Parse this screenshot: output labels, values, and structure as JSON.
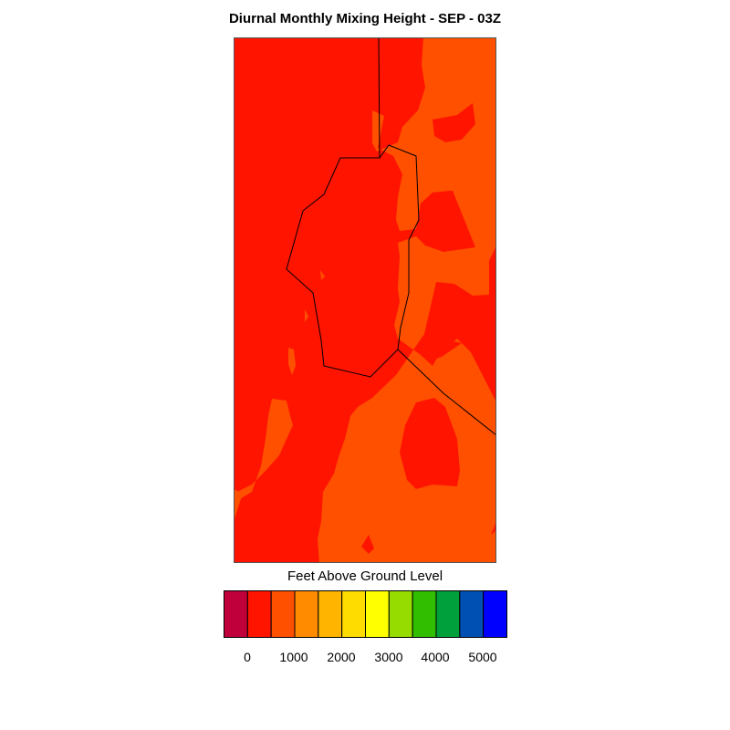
{
  "title": "Diurnal Monthly Mixing Height - SEP - 03Z",
  "legend": {
    "title": "Feet Above Ground Level",
    "tick_labels": [
      "0",
      "1000",
      "2000",
      "3000",
      "4000",
      "5000"
    ],
    "colors": [
      "#c0003a",
      "#ff1400",
      "#ff5000",
      "#ff8c00",
      "#ffb400",
      "#ffdc00",
      "#ffff00",
      "#96dc00",
      "#32be00",
      "#00a03c",
      "#0050b4",
      "#0000ff"
    ]
  },
  "map": {
    "background_color": "#ff1400",
    "secondary_color": "#ff5000",
    "boundary_color": "#000000"
  }
}
